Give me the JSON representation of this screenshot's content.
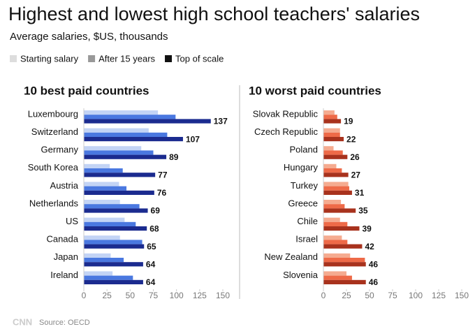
{
  "header": {
    "title": "Highest and lowest high school teachers' salaries",
    "subtitle": "Average salaries, $US, thousands"
  },
  "legend": [
    {
      "name": "Starting salary",
      "color": "#dddddd"
    },
    {
      "name": "After 15 years",
      "color": "#999999"
    },
    {
      "name": "Top of scale",
      "color": "#111111"
    }
  ],
  "chart_data": [
    {
      "type": "bar",
      "orientation": "horizontal",
      "title": "10 best paid countries",
      "categories": [
        "Luxembourg",
        "Switzerland",
        "Germany",
        "South Korea",
        "Austria",
        "Netherlands",
        "US",
        "Canada",
        "Japan",
        "Ireland"
      ],
      "series": [
        {
          "color": "#c3d4f5",
          "values": [
            80,
            70,
            62,
            28,
            38,
            39,
            44,
            39,
            29,
            31
          ]
        },
        {
          "color": "#4a78e0",
          "values": [
            99,
            90,
            75,
            42,
            46,
            60,
            56,
            63,
            43,
            53
          ]
        },
        {
          "color": "#1b2b8f",
          "values": [
            137,
            107,
            89,
            77,
            76,
            69,
            68,
            65,
            64,
            64
          ]
        }
      ],
      "xlim": [
        0,
        150
      ],
      "xticks": [
        0,
        25,
        50,
        75,
        100,
        125,
        150
      ]
    },
    {
      "type": "bar",
      "orientation": "horizontal",
      "title": "10 worst paid countries",
      "categories": [
        "Slovak Republic",
        "Czech Republic",
        "Poland",
        "Hungary",
        "Turkey",
        "Greece",
        "Chile",
        "Israel",
        "New Zealand",
        "Slovenia"
      ],
      "series": [
        {
          "color": "#f5ab90",
          "values": [
            12,
            18,
            11,
            14,
            27,
            19,
            18,
            20,
            29,
            25
          ]
        },
        {
          "color": "#ee6a48",
          "values": [
            15,
            18,
            21,
            20,
            28,
            23,
            26,
            26,
            45,
            31
          ]
        },
        {
          "color": "#a8321d",
          "values": [
            19,
            22,
            26,
            27,
            31,
            35,
            39,
            42,
            46,
            46
          ]
        }
      ],
      "xlim": [
        0,
        150
      ],
      "xticks": [
        0,
        25,
        50,
        75,
        100,
        125,
        150
      ]
    }
  ],
  "footer": {
    "logo": "CNN",
    "source": "Source: OECD"
  }
}
